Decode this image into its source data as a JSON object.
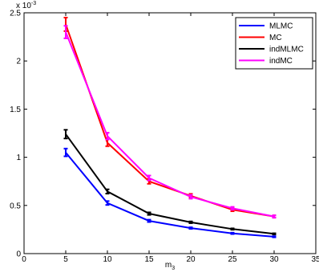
{
  "chart_data": {
    "type": "line",
    "title": "",
    "xlabel": "m_3",
    "xlabel_main": "m",
    "xlabel_sub": "3",
    "ylabel": "",
    "y_multiplier": "x 10",
    "y_multiplier_exp": "-3",
    "xlim": [
      0,
      35
    ],
    "ylim": [
      0,
      2.5
    ],
    "x_ticks": [
      0,
      5,
      10,
      15,
      20,
      25,
      30,
      35
    ],
    "x_tick_labels": [
      "0",
      "5",
      "10",
      "15",
      "20",
      "25",
      "30",
      "35"
    ],
    "y_ticks": [
      0,
      0.5,
      1,
      1.5,
      2,
      2.5
    ],
    "y_tick_labels": [
      "0",
      "0.5",
      "1",
      "1.5",
      "2",
      "2.5"
    ],
    "grid": false,
    "legend_position": "top-right",
    "x": [
      5,
      10,
      15,
      20,
      25,
      30
    ],
    "series": [
      {
        "name": "MLMC",
        "color": "#0000ff",
        "values": [
          1.05,
          0.525,
          0.34,
          0.265,
          0.21,
          0.175
        ],
        "errors": [
          0.04,
          0.02,
          0.012,
          0.008,
          0.007,
          0.006
        ]
      },
      {
        "name": "MC",
        "color": "#ff0000",
        "values": [
          2.38,
          1.15,
          0.75,
          0.6,
          0.455,
          0.385
        ],
        "errors": [
          0.07,
          0.035,
          0.025,
          0.02,
          0.015,
          0.012
        ]
      },
      {
        "name": "indMLMC",
        "color": "#000000",
        "values": [
          1.24,
          0.645,
          0.415,
          0.325,
          0.255,
          0.205
        ],
        "errors": [
          0.045,
          0.022,
          0.013,
          0.009,
          0.007,
          0.006
        ]
      },
      {
        "name": "indMC",
        "color": "#ff00ff",
        "values": [
          2.3,
          1.22,
          0.785,
          0.59,
          0.47,
          0.385
        ],
        "errors": [
          0.065,
          0.035,
          0.025,
          0.02,
          0.015,
          0.012
        ]
      }
    ]
  }
}
